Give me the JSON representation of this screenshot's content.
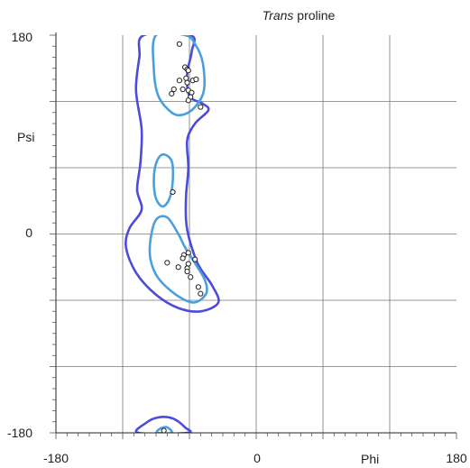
{
  "chart_data": {
    "type": "scatter",
    "title_italic": "Trans",
    "title_rest": " proline",
    "xlabel": "Phi",
    "ylabel": "Psi",
    "xlim": [
      -180,
      180
    ],
    "ylim": [
      -180,
      180
    ],
    "x_tick_labels": [
      "-180",
      "0",
      "180"
    ],
    "y_tick_labels": [
      "180",
      "0",
      "-180"
    ],
    "grid": true,
    "colors": {
      "outer_contour": "#4b4bdc",
      "inner_contour": "#4aa0dc",
      "grid": "#777777",
      "point": "#222222"
    },
    "points": [
      {
        "x": -69,
        "y": 172
      },
      {
        "x": -64,
        "y": 151
      },
      {
        "x": -62,
        "y": 149
      },
      {
        "x": -61,
        "y": 148
      },
      {
        "x": -69,
        "y": 139
      },
      {
        "x": -63,
        "y": 141
      },
      {
        "x": -62,
        "y": 137
      },
      {
        "x": -57,
        "y": 139
      },
      {
        "x": -54,
        "y": 140
      },
      {
        "x": -74,
        "y": 131
      },
      {
        "x": -76,
        "y": 127
      },
      {
        "x": -66,
        "y": 131
      },
      {
        "x": -61,
        "y": 130
      },
      {
        "x": -58,
        "y": 128
      },
      {
        "x": -59,
        "y": 124
      },
      {
        "x": -61,
        "y": 121
      },
      {
        "x": -50,
        "y": 115
      },
      {
        "x": -75,
        "y": 38
      },
      {
        "x": -61,
        "y": -17
      },
      {
        "x": -65,
        "y": -19
      },
      {
        "x": -66,
        "y": -22
      },
      {
        "x": -55,
        "y": -23
      },
      {
        "x": -80,
        "y": -26
      },
      {
        "x": -61,
        "y": -27
      },
      {
        "x": -62,
        "y": -31
      },
      {
        "x": -70,
        "y": -30
      },
      {
        "x": -62,
        "y": -34
      },
      {
        "x": -59,
        "y": -39
      },
      {
        "x": -52,
        "y": -48
      },
      {
        "x": -50,
        "y": -54
      },
      {
        "x": -83,
        "y": -178
      }
    ]
  }
}
